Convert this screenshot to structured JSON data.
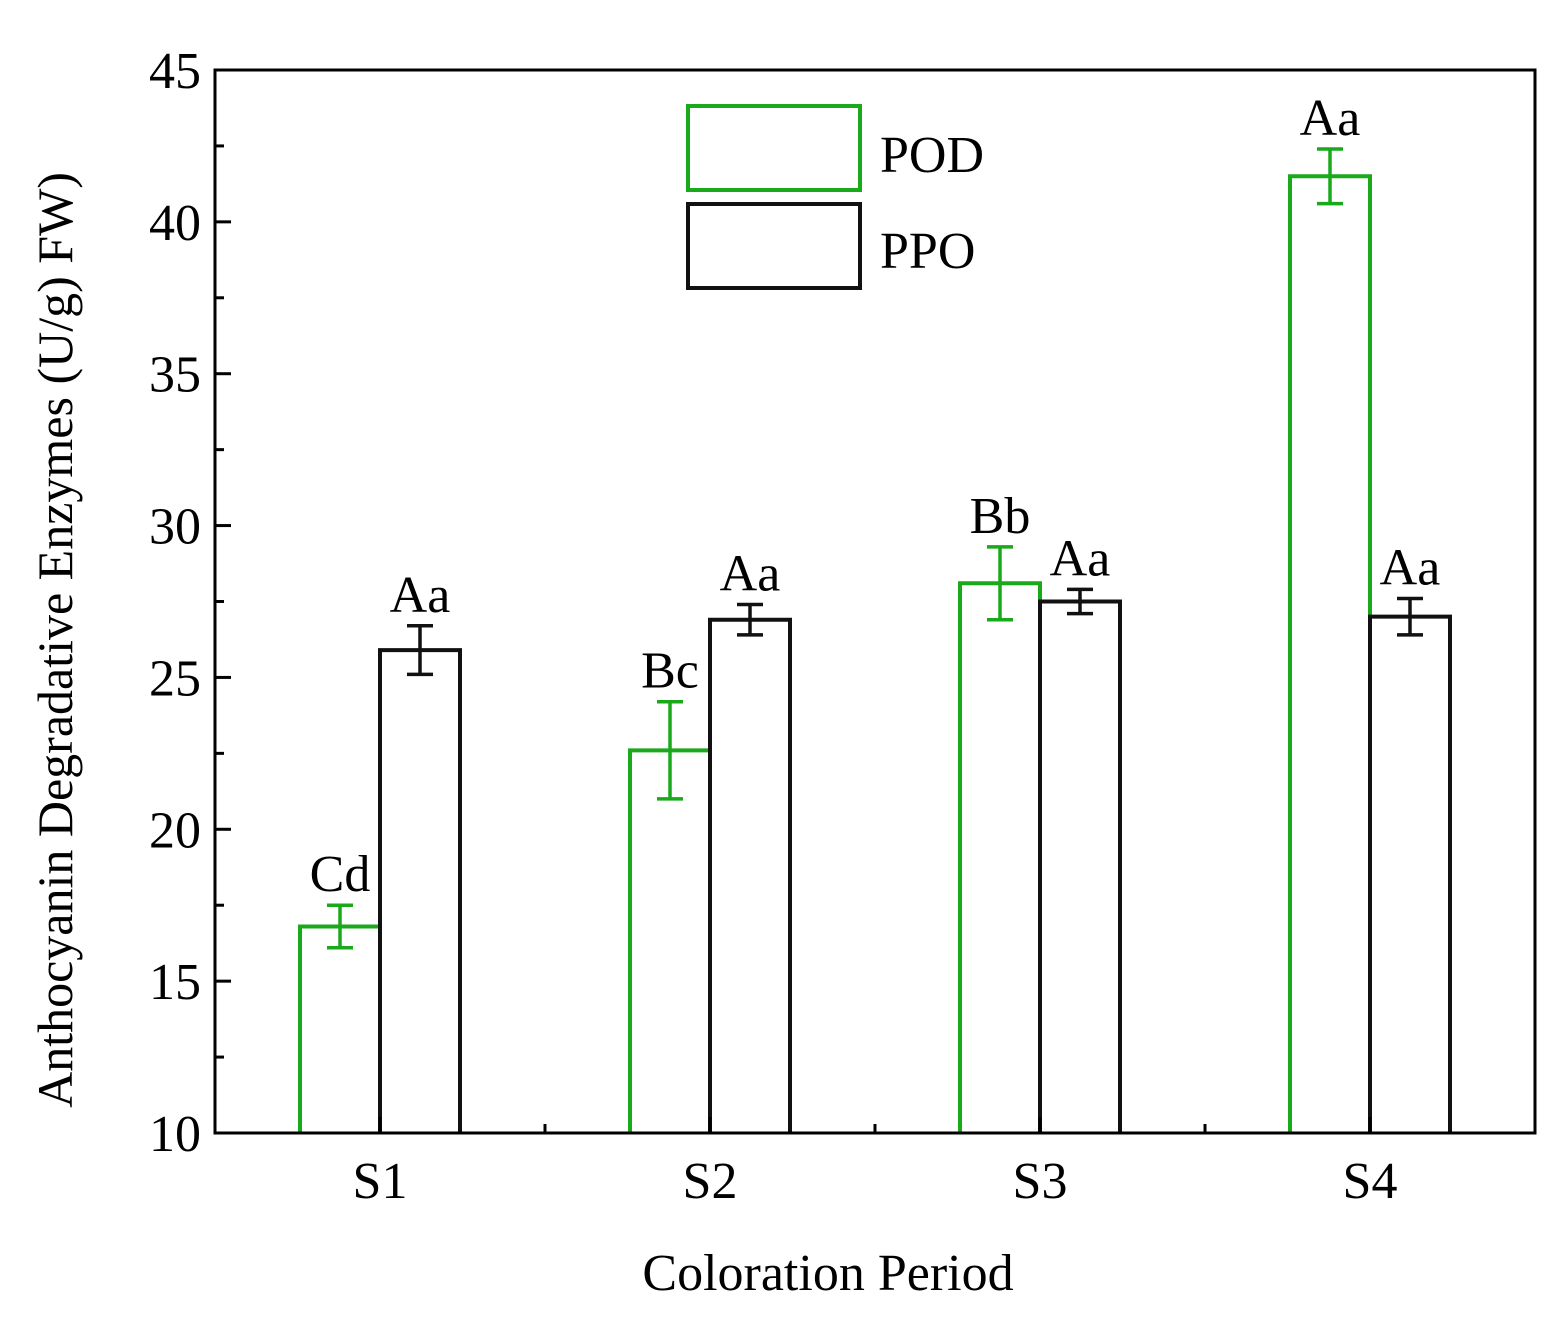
{
  "chart_data": {
    "type": "bar",
    "title": "",
    "xlabel": "Coloration Period",
    "ylabel": "Anthocyanin Degradative Enzymes (U/g) FW)",
    "ylim": [
      10,
      45
    ],
    "yticks": [
      "10",
      "15",
      "20",
      "25",
      "30",
      "35",
      "40",
      "45"
    ],
    "categories": [
      "S1",
      "S2",
      "S3",
      "S4"
    ],
    "legend_position": "top-center",
    "series": [
      {
        "name": "POD",
        "color": "#1aa91a",
        "values": [
          16.8,
          22.6,
          28.1,
          41.5
        ],
        "errors": [
          0.7,
          1.6,
          1.2,
          0.9
        ],
        "labels": [
          "Cd",
          "Bc",
          "Bb",
          "Aa"
        ]
      },
      {
        "name": "PPO",
        "color": "#111111",
        "values": [
          25.9,
          26.9,
          27.5,
          27.0
        ],
        "errors": [
          0.8,
          0.5,
          0.4,
          0.6
        ],
        "labels": [
          "Aa",
          "Aa",
          "Aa",
          "Aa"
        ]
      }
    ]
  }
}
